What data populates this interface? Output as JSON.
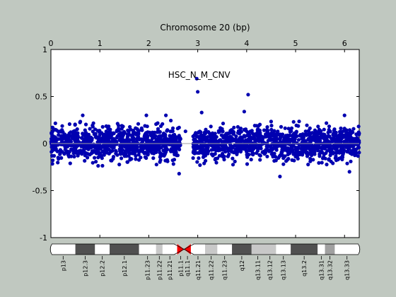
{
  "chart_data": {
    "type": "scatter",
    "title": "Chromosome 20 (bp)",
    "annotation": "HSC_N_M_CNV",
    "x_tick_labels": [
      "0",
      "1",
      "2",
      "3",
      "4",
      "5",
      "6"
    ],
    "x_ticks": [
      0,
      1,
      2,
      3,
      4,
      5,
      6
    ],
    "y_tick_labels": [
      "1",
      "0.5",
      "0",
      "-0.5",
      "-1"
    ],
    "y_ticks": [
      1,
      0.5,
      0,
      -0.5,
      -1
    ],
    "xlim": [
      0,
      6.3
    ],
    "ylim": [
      -1,
      1
    ],
    "grid": false,
    "marker_color": "#0000b0",
    "zero_line_color": "#a0a0a0",
    "series": [
      {
        "segments": [
          {
            "x_start": 0.0,
            "x_end": 2.65,
            "count": 900,
            "spread": 0.085
          },
          {
            "x_start": 2.9,
            "x_end": 6.3,
            "count": 1100,
            "spread": 0.085
          }
        ],
        "outliers": [
          {
            "x": 3.0,
            "y": 0.55
          },
          {
            "x": 2.98,
            "y": 0.69
          },
          {
            "x": 3.08,
            "y": 0.33
          },
          {
            "x": 4.03,
            "y": 0.52
          },
          {
            "x": 2.75,
            "y": 0.13
          },
          {
            "x": 2.62,
            "y": 0.17
          },
          {
            "x": 2.62,
            "y": -0.32
          },
          {
            "x": 4.68,
            "y": -0.35
          },
          {
            "x": 6.1,
            "y": -0.3
          },
          {
            "x": 6.0,
            "y": 0.3
          },
          {
            "x": 0.65,
            "y": 0.3
          },
          {
            "x": 2.35,
            "y": 0.3
          },
          {
            "x": 3.95,
            "y": 0.34
          },
          {
            "x": 1.95,
            "y": 0.3
          }
        ]
      }
    ]
  },
  "ideogram": {
    "bands": [
      {
        "label": "p13",
        "start": 0.0,
        "end": 0.5,
        "color": "#ffffff"
      },
      {
        "label": "p12.3",
        "start": 0.5,
        "end": 0.9,
        "color": "#505050"
      },
      {
        "label": "p12.2",
        "start": 0.9,
        "end": 1.2,
        "color": "#ffffff"
      },
      {
        "label": "p12.1",
        "start": 1.2,
        "end": 1.8,
        "color": "#505050"
      },
      {
        "label": "p11.23",
        "start": 1.8,
        "end": 2.15,
        "color": "#ffffff"
      },
      {
        "label": "p11.22",
        "start": 2.15,
        "end": 2.28,
        "color": "#c8c8c8"
      },
      {
        "label": "p11.21",
        "start": 2.28,
        "end": 2.58,
        "color": "#ffffff"
      },
      {
        "label": "p11.1",
        "start": 2.58,
        "end": 2.72,
        "color": "#ff0000",
        "centromere": "p"
      },
      {
        "label": "q11.1",
        "start": 2.72,
        "end": 2.86,
        "color": "#ff0000",
        "centromere": "q"
      },
      {
        "label": "q11.21",
        "start": 2.86,
        "end": 3.15,
        "color": "#ffffff"
      },
      {
        "label": "q11.22",
        "start": 3.15,
        "end": 3.4,
        "color": "#c8c8c8"
      },
      {
        "label": "q11.23",
        "start": 3.4,
        "end": 3.7,
        "color": "#ffffff"
      },
      {
        "label": "q12",
        "start": 3.7,
        "end": 4.1,
        "color": "#505050"
      },
      {
        "label": "q13.11",
        "start": 4.1,
        "end": 4.35,
        "color": "#c8c8c8"
      },
      {
        "label": "q13.12",
        "start": 4.35,
        "end": 4.6,
        "color": "#c8c8c8"
      },
      {
        "label": "q13.13",
        "start": 4.6,
        "end": 4.9,
        "color": "#ffffff"
      },
      {
        "label": "q13.2",
        "start": 4.9,
        "end": 5.45,
        "color": "#505050"
      },
      {
        "label": "q13.31",
        "start": 5.45,
        "end": 5.6,
        "color": "#ffffff"
      },
      {
        "label": "q13.32",
        "start": 5.6,
        "end": 5.8,
        "color": "#a0a0a0"
      },
      {
        "label": "q13.33",
        "start": 5.8,
        "end": 6.3,
        "color": "#ffffff"
      }
    ]
  }
}
